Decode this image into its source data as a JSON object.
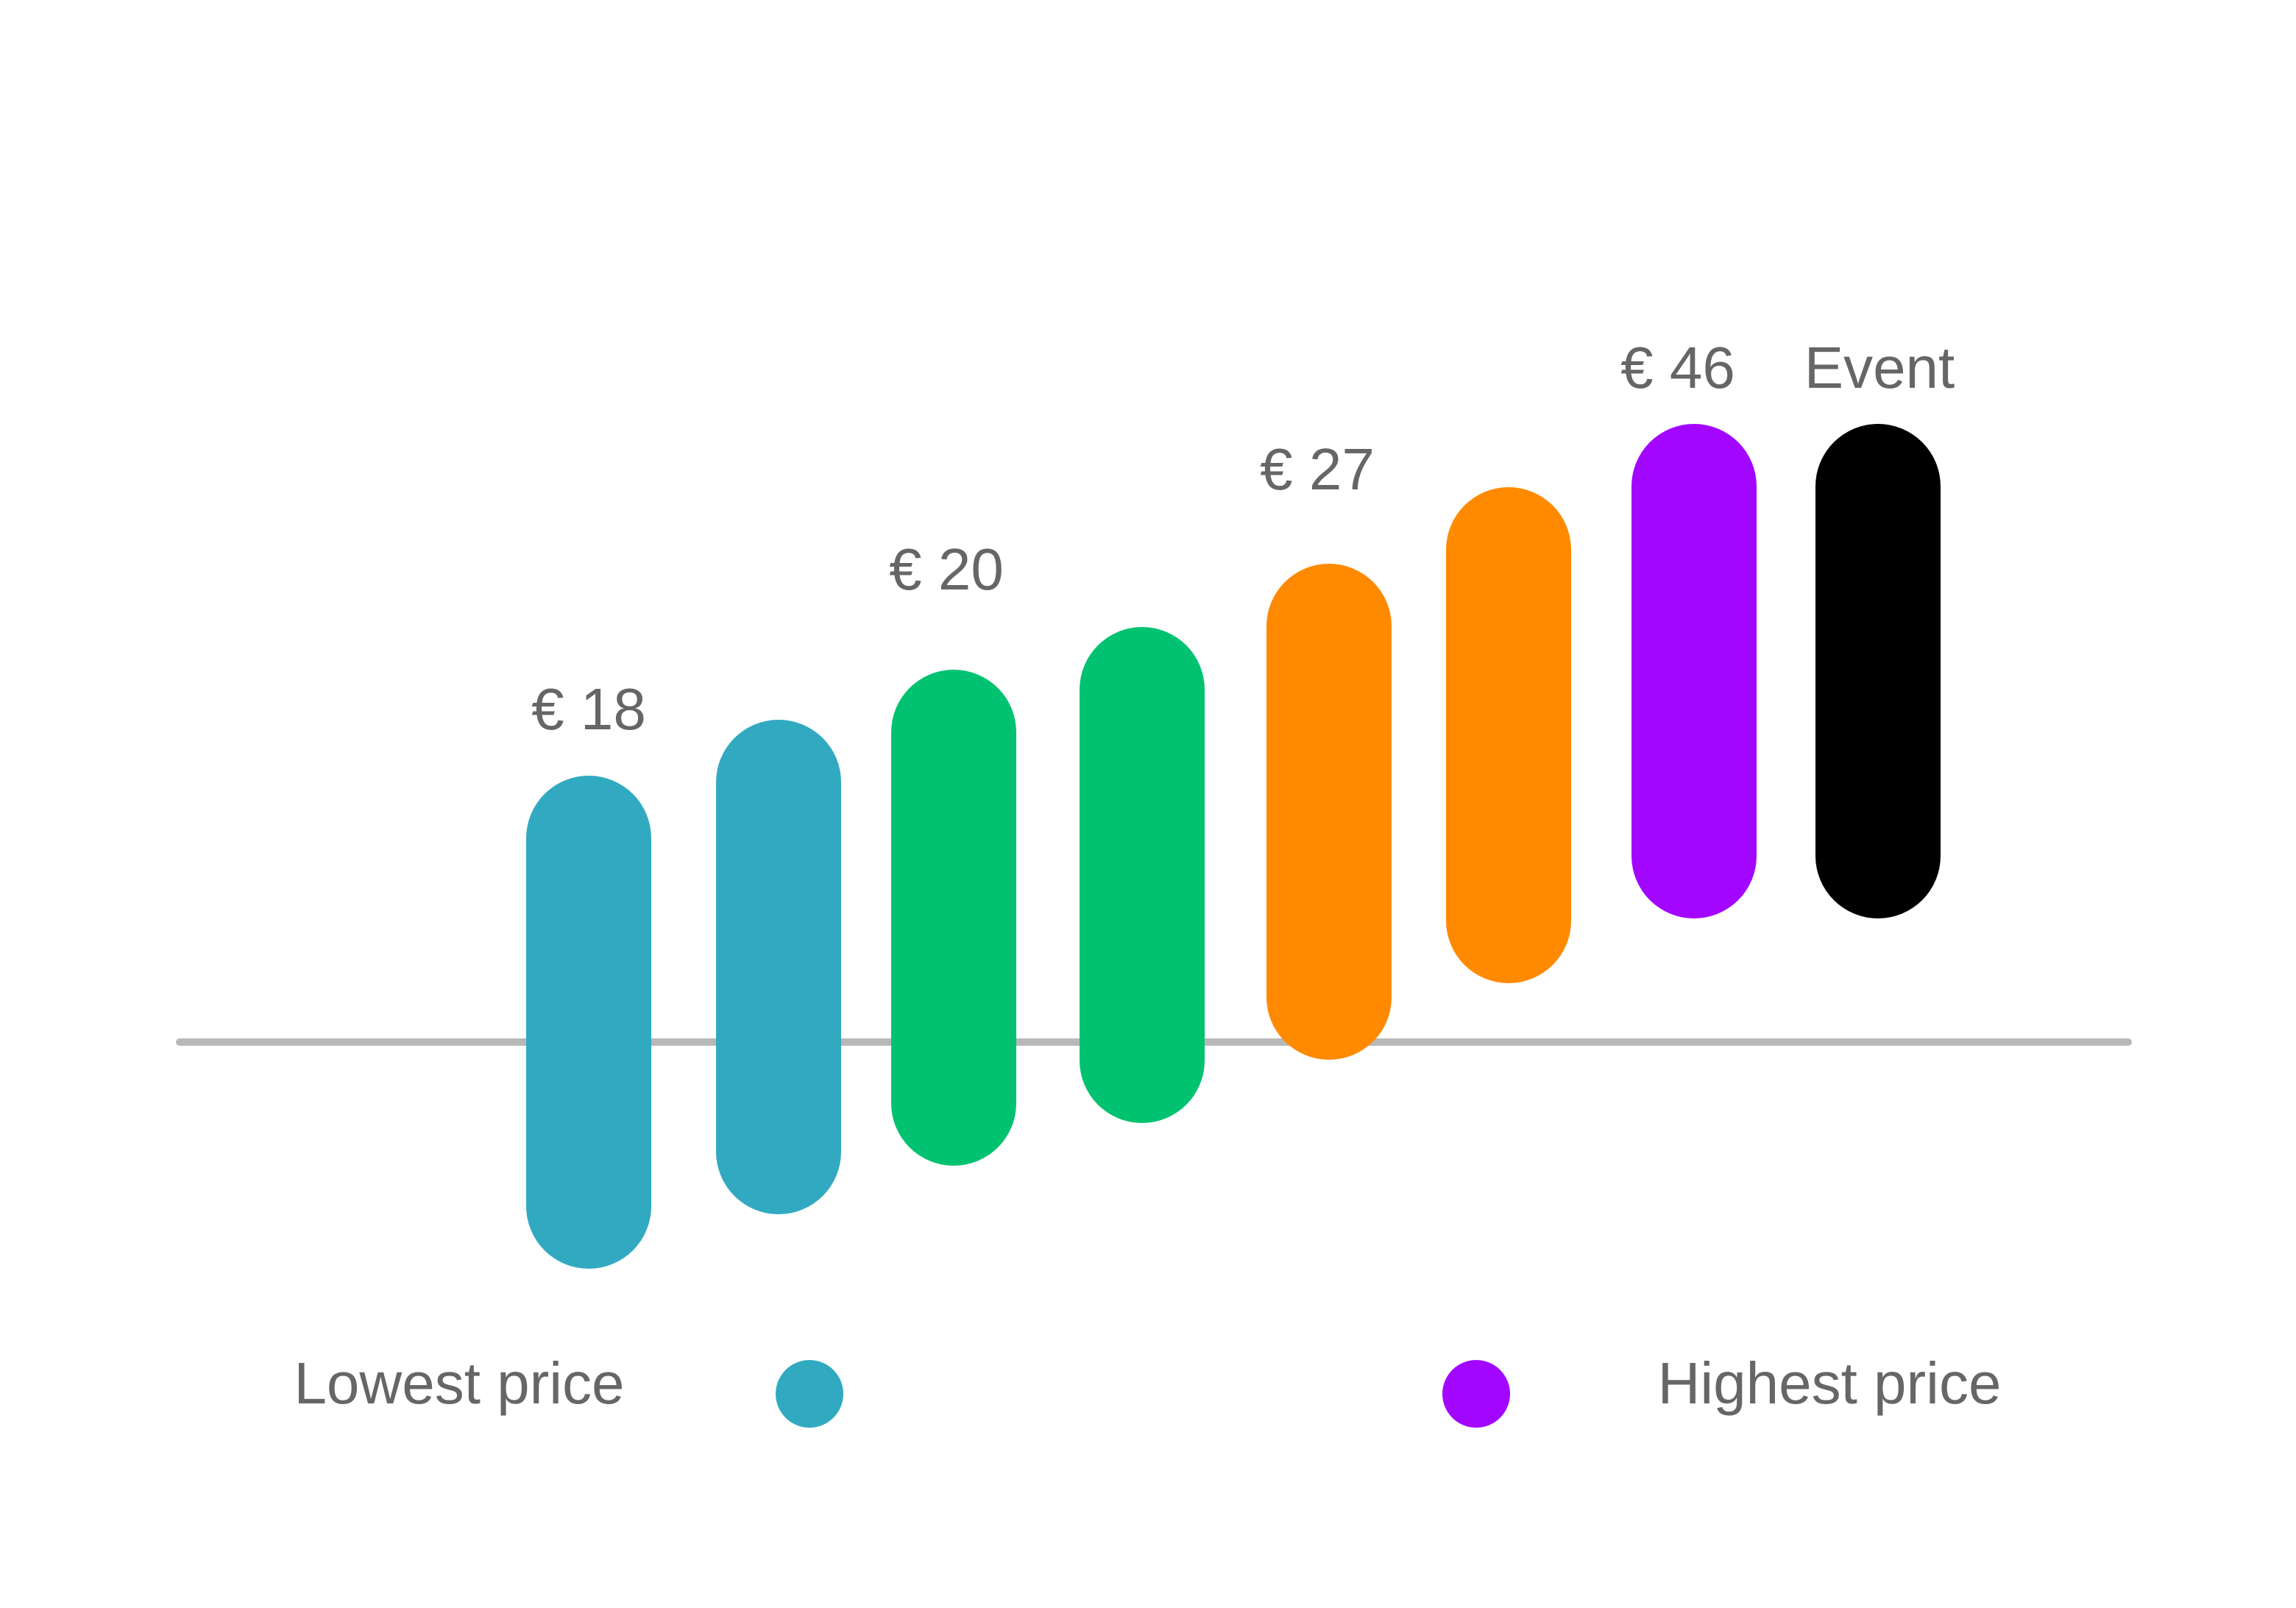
{
  "pills": [
    {
      "color": "#31aac1",
      "label": "€ 18"
    },
    {
      "color": "#31aac1"
    },
    {
      "color": "#00c271",
      "label": "€ 20"
    },
    {
      "color": "#00c271"
    },
    {
      "color": "#ff8a00",
      "label": "€ 27"
    },
    {
      "color": "#ff8a00"
    },
    {
      "color": "#a306ff",
      "label": "€ 46"
    },
    {
      "color": "#000000",
      "label": "Event"
    }
  ],
  "legend": {
    "low": "Lowest price",
    "high": "Highest price"
  }
}
